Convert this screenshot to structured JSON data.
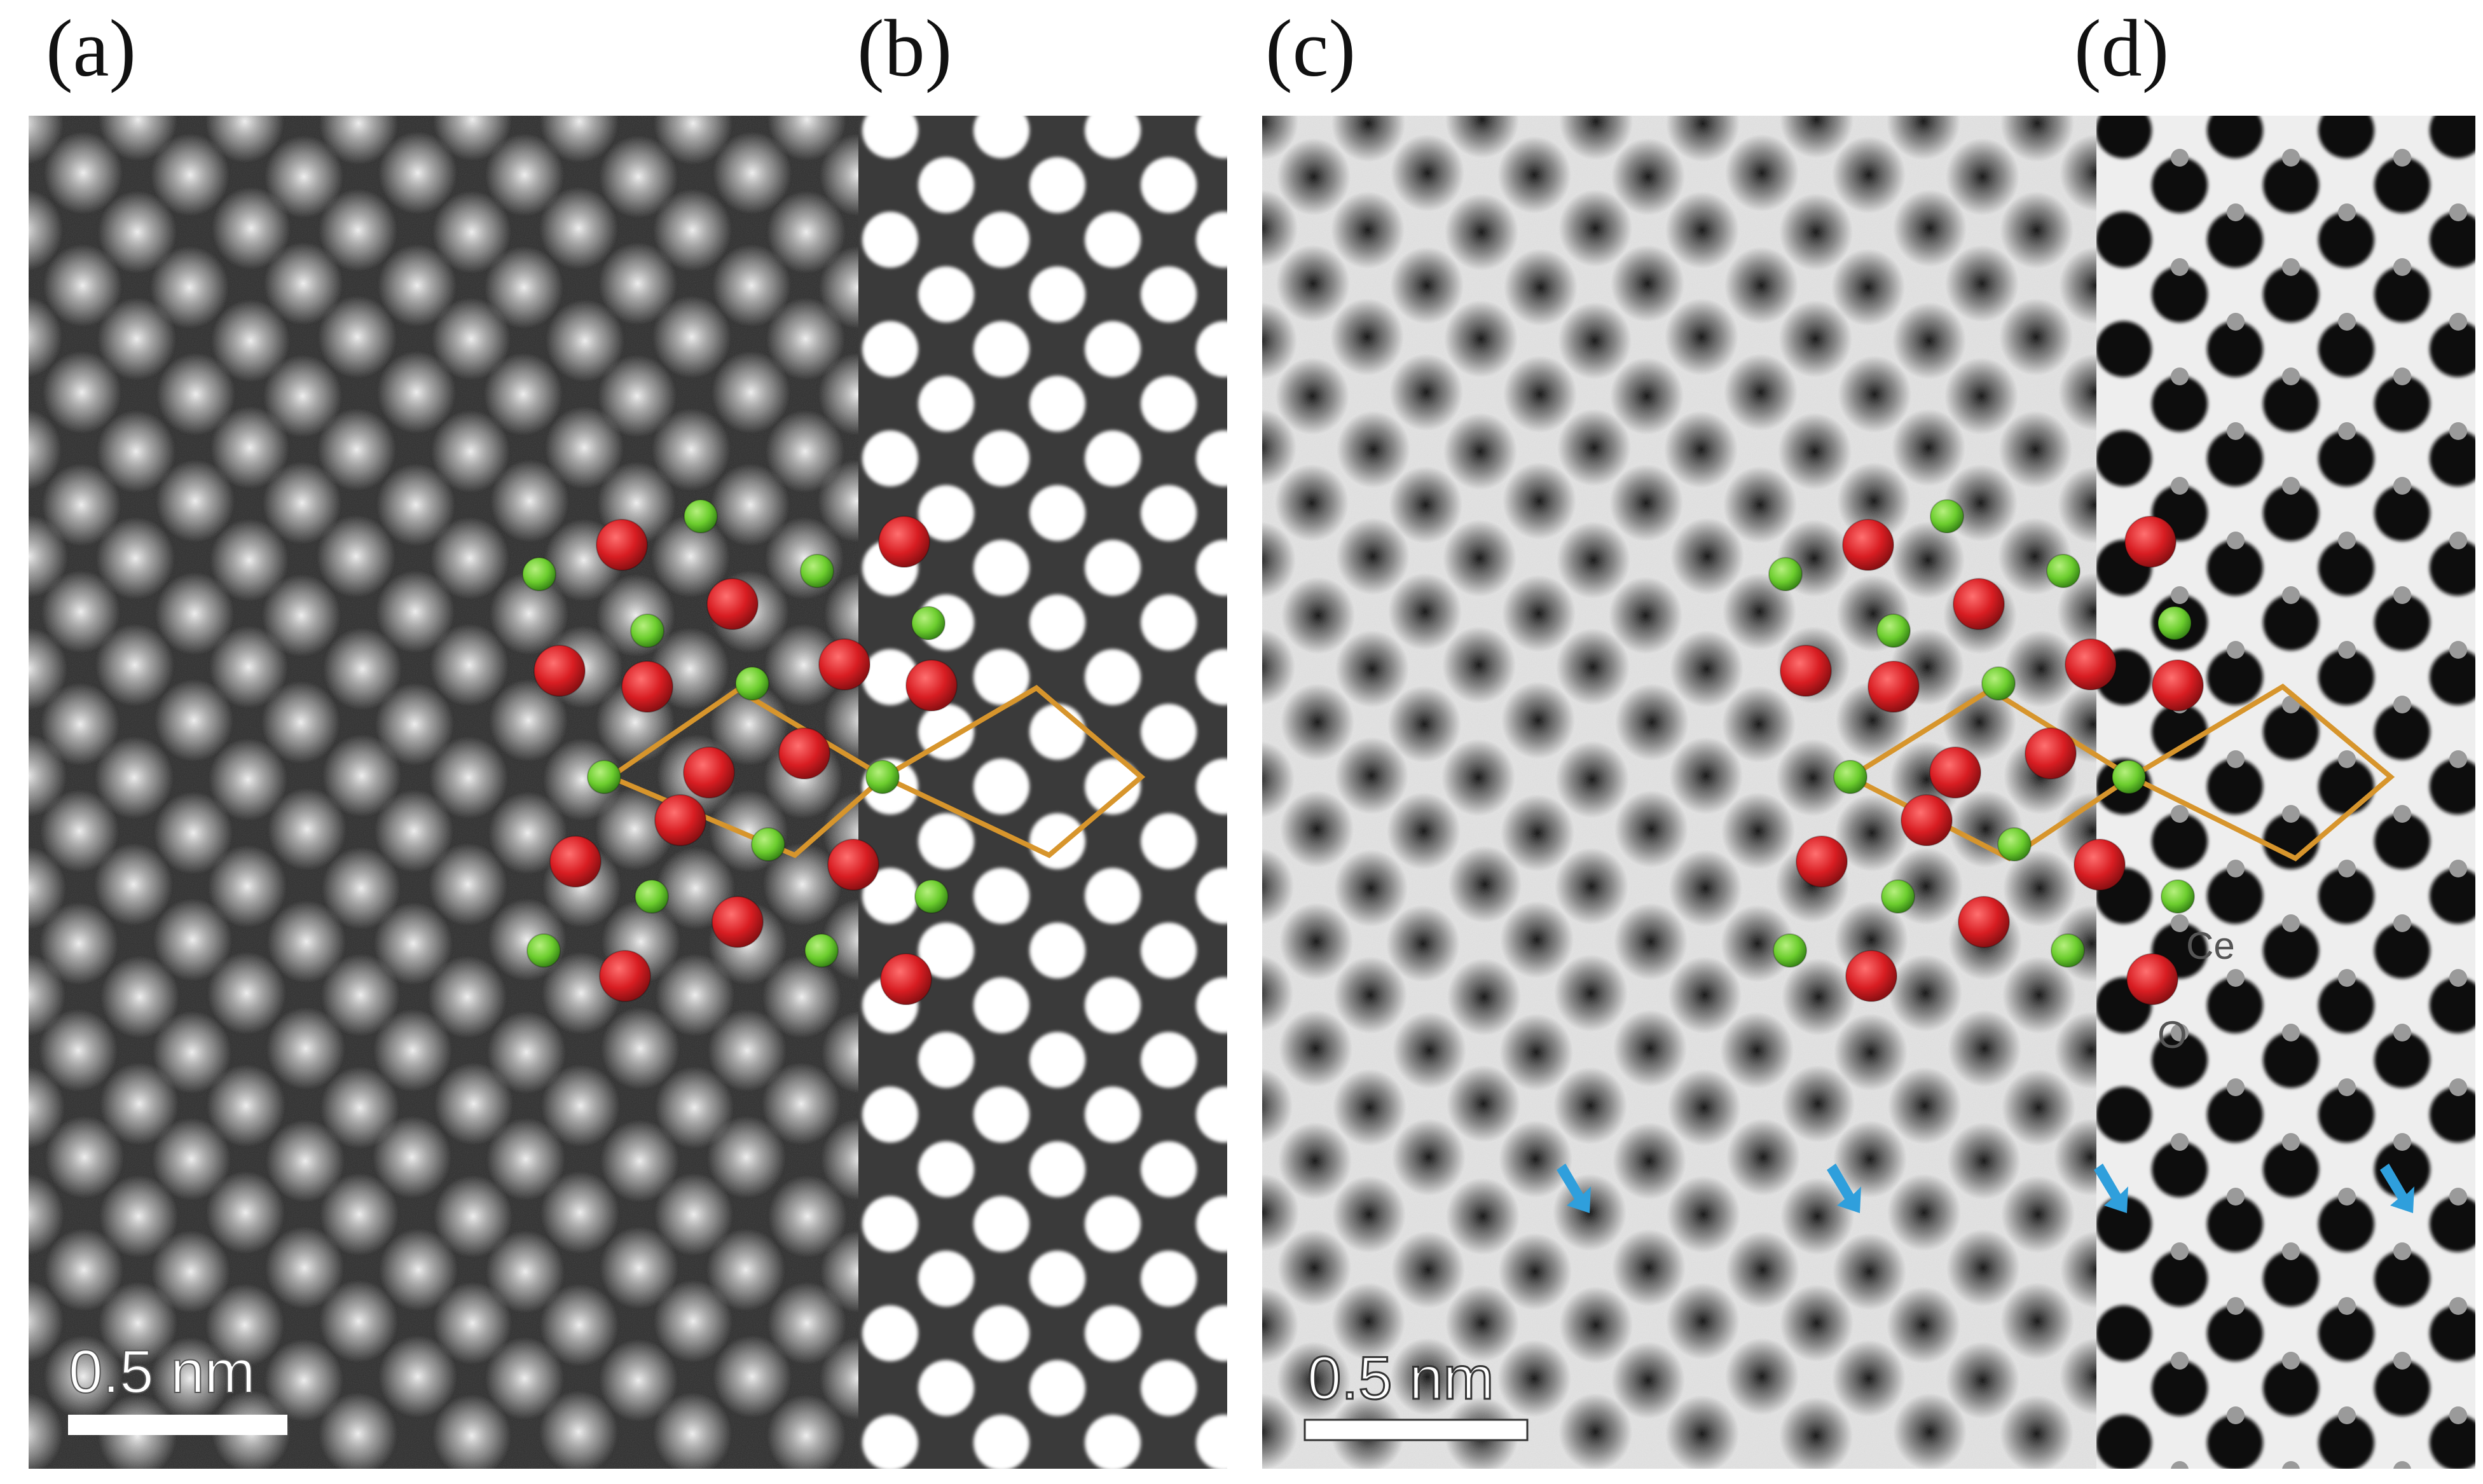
{
  "figure": {
    "panel_labels": {
      "a": "(a)",
      "b": "(b)",
      "c": "(c)",
      "d": "(d)"
    },
    "scale_bars": {
      "left": "0.5 nm",
      "right": "0.5 nm"
    },
    "legend": {
      "ce": "Ce",
      "o": "O"
    },
    "colors": {
      "oxygen_atom": "#d81d22",
      "cerium_atom": "#6ccd2e",
      "unit_cell_outline": "#d7952c",
      "arrow": "#2f9fdc",
      "dark_background": "#2a2a2a",
      "light_background": "#e9e9e9"
    },
    "arrow_icon": "down-right-arrow-icon"
  }
}
